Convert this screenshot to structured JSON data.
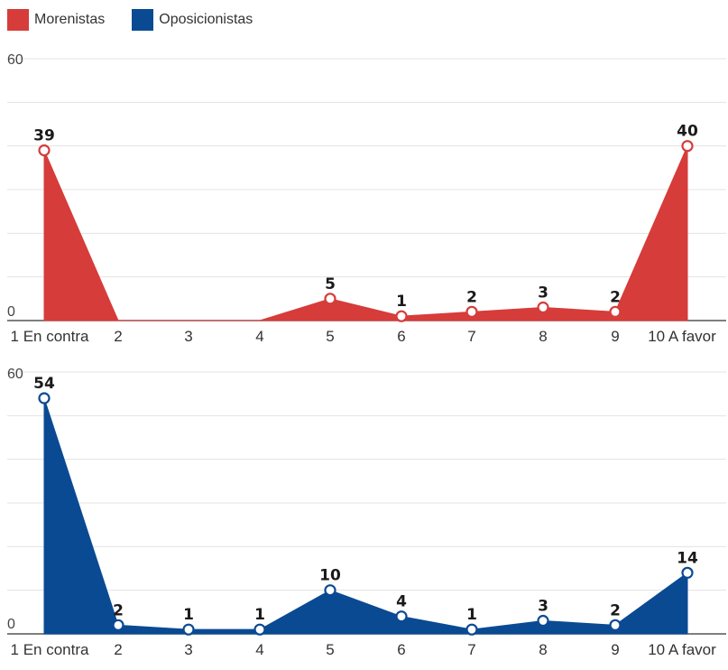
{
  "legend": [
    {
      "label": "Morenistas",
      "color": "#d63c3a"
    },
    {
      "label": "Oposicionistas",
      "color": "#0a4a93"
    }
  ],
  "chart_data": [
    {
      "type": "area",
      "series_name": "Morenistas",
      "color": "#d63c3a",
      "categories": [
        "1 En contra",
        "2",
        "3",
        "4",
        "5",
        "6",
        "7",
        "8",
        "9",
        "10 A favor"
      ],
      "values": [
        39,
        0,
        0,
        0,
        5,
        1,
        2,
        3,
        2,
        40
      ],
      "labels": [
        "39",
        "",
        "",
        "",
        "5",
        "1",
        "2",
        "3",
        "2",
        "40"
      ],
      "y_tick_labels": {
        "top": "60",
        "bottom": "0"
      },
      "ylim": [
        0,
        60
      ],
      "grid": true
    },
    {
      "type": "area",
      "series_name": "Oposicionistas",
      "color": "#0a4a93",
      "categories": [
        "1 En contra",
        "2",
        "3",
        "4",
        "5",
        "6",
        "7",
        "8",
        "9",
        "10 A favor"
      ],
      "values": [
        54,
        2,
        1,
        1,
        10,
        4,
        1,
        3,
        2,
        14
      ],
      "labels": [
        "54",
        "2",
        "1",
        "1",
        "10",
        "4",
        "1",
        "3",
        "2",
        "14"
      ],
      "y_tick_labels": {
        "top": "60",
        "bottom": "0"
      },
      "ylim": [
        0,
        60
      ],
      "grid": true
    }
  ]
}
